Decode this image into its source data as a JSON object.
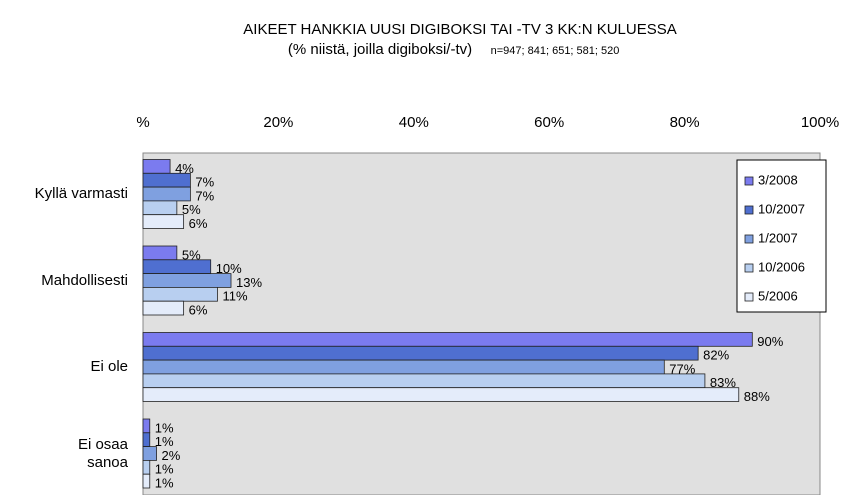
{
  "chart_data": {
    "type": "bar",
    "orientation": "horizontal",
    "title": "AIKEET HANKKIA UUSI DIGIBOKSI TAI -TV 3 KK:N KULUESSA",
    "subtitle": "(% niistä, joilla digiboksi/-tv)",
    "note": "n=947; 841; 651; 581; 520",
    "categories": [
      "Kyllä varmasti",
      "Mahdollisesti",
      "Ei ole",
      "Ei osaa\nsanoa"
    ],
    "series": [
      {
        "name": "3/2008",
        "color": "#7b7bef",
        "values": [
          4,
          5,
          90,
          1
        ],
        "value_labels": [
          "4%",
          "5%",
          "90%",
          "1%"
        ]
      },
      {
        "name": "10/2007",
        "color": "#4f6fd0",
        "values": [
          7,
          10,
          82,
          1
        ],
        "value_labels": [
          "7%",
          "10%",
          "82%",
          "1%"
        ]
      },
      {
        "name": "1/2007",
        "color": "#7fa0e0",
        "values": [
          7,
          13,
          77,
          2
        ],
        "value_labels": [
          "7%",
          "13%",
          "77%",
          "2%"
        ]
      },
      {
        "name": "10/2006",
        "color": "#b8cff0",
        "values": [
          5,
          11,
          83,
          1
        ],
        "value_labels": [
          "5%",
          "11%",
          "83%",
          "1%"
        ]
      },
      {
        "name": "5/2006",
        "color": "#e4ecfa",
        "values": [
          6,
          6,
          88,
          1
        ],
        "value_labels": [
          "6%",
          "6%",
          "88%",
          "1%"
        ]
      }
    ],
    "xlim": [
      0,
      100
    ],
    "xticks": [
      {
        "value": 0,
        "label": "%"
      },
      {
        "value": 20,
        "label": "20%"
      },
      {
        "value": 40,
        "label": "40%"
      },
      {
        "value": 60,
        "label": "60%"
      },
      {
        "value": 80,
        "label": "80%"
      },
      {
        "value": 100,
        "label": "100%"
      }
    ],
    "legend": "top-right"
  }
}
